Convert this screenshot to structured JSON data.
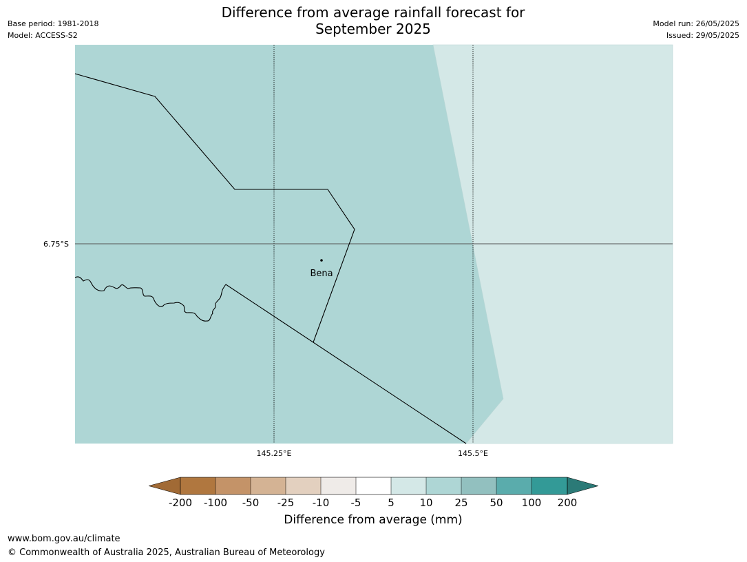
{
  "header": {
    "base_period": "Base period: 1981-2018",
    "model": "Model: ACCESS-S2",
    "model_run": "Model run: 26/05/2025",
    "issued": "Issued: 29/05/2025",
    "title_line1": "Difference from average rainfall forecast for",
    "title_line2": "September 2025"
  },
  "map": {
    "lat_label": "6.75°S",
    "lon_labels": [
      "145.25°E",
      "145.5°E"
    ],
    "place": "Bena"
  },
  "legend": {
    "ticks": [
      "-200",
      "-100",
      "-50",
      "-25",
      "-10",
      "-5",
      "5",
      "10",
      "25",
      "50",
      "100",
      "200"
    ],
    "colors": {
      "lt_-200": "#a16a35",
      "-200_-100": "#b0773f",
      "-100_-50": "#c49368",
      "-50_-25": "#d4b394",
      "-25_-10": "#e3d0bf",
      "-10_-5": "#efebe8",
      "-5_5": "#ffffff",
      "5_10": "#d4e8e7",
      "10_25": "#aed6d5",
      "25_50": "#92c0bf",
      "50_100": "#5aacac",
      "100_200": "#339a97",
      "gt_200": "#2b7a77"
    },
    "label": "Difference from average (mm)"
  },
  "footer": {
    "url": "www.bom.gov.au/climate",
    "copyright": "© Commonwealth of Australia 2025, Australian Bureau of Meteorology"
  }
}
